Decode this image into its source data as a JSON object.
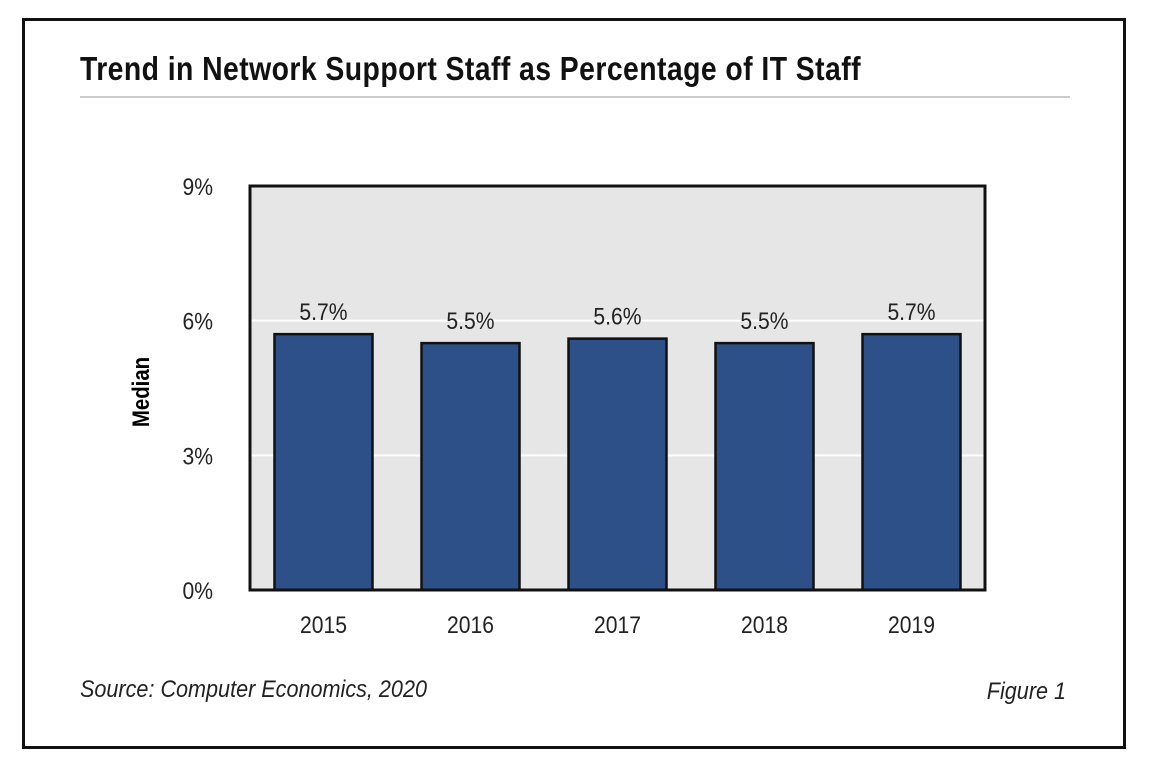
{
  "chart_data": {
    "type": "bar",
    "title": "Trend in Network Support Staff as Percentage of IT Staff",
    "ylabel": "Median",
    "xlabel": "",
    "categories": [
      "2015",
      "2016",
      "2017",
      "2018",
      "2019"
    ],
    "values": [
      5.7,
      5.5,
      5.6,
      5.5,
      5.7
    ],
    "data_labels": [
      "5.7%",
      "5.5%",
      "5.6%",
      "5.5%",
      "5.7%"
    ],
    "ylim": [
      0,
      9
    ],
    "yticks": [
      0,
      3,
      6,
      9
    ],
    "ytick_labels": [
      "0%",
      "3%",
      "6%",
      "9%"
    ],
    "grid": true,
    "colors": {
      "bar": "#2d5089",
      "plot_bg": "#e6e6e6",
      "gridline": "#ffffff"
    }
  },
  "source": "Source: Computer Economics, 2020",
  "figure_label": "Figure 1"
}
